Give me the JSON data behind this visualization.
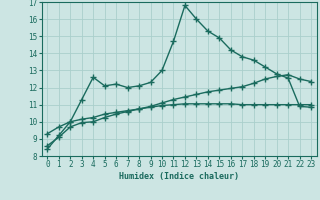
{
  "bg_color": "#cce5e3",
  "grid_color": "#aacfcc",
  "line_color": "#1a6b5e",
  "line_width": 1.0,
  "marker": "+",
  "marker_size": 4,
  "marker_ew": 1.0,
  "xlabel": "Humidex (Indice chaleur)",
  "xlim": [
    -0.5,
    23.5
  ],
  "ylim": [
    8,
    17
  ],
  "xticks": [
    0,
    1,
    2,
    3,
    4,
    5,
    6,
    7,
    8,
    9,
    10,
    11,
    12,
    13,
    14,
    15,
    16,
    17,
    18,
    19,
    20,
    21,
    22,
    23
  ],
  "yticks": [
    8,
    9,
    10,
    11,
    12,
    13,
    14,
    15,
    16,
    17
  ],
  "line1_x": [
    0,
    1,
    2,
    3,
    4,
    5,
    6,
    7,
    8,
    9,
    10,
    11,
    12,
    13,
    14,
    15,
    16,
    17,
    18,
    19,
    20,
    21,
    22,
    23
  ],
  "line1_y": [
    8.4,
    9.2,
    10.0,
    11.3,
    12.6,
    12.1,
    12.2,
    12.0,
    12.1,
    12.3,
    13.0,
    14.7,
    16.8,
    16.0,
    15.3,
    14.9,
    14.2,
    13.8,
    13.6,
    13.2,
    12.8,
    12.55,
    10.9,
    10.85
  ],
  "line2_x": [
    0,
    1,
    2,
    3,
    4,
    5,
    6,
    7,
    8,
    9,
    10,
    11,
    12,
    13,
    14,
    15,
    16,
    17,
    18,
    19,
    20,
    21,
    22,
    23
  ],
  "line2_y": [
    9.3,
    9.7,
    10.0,
    10.15,
    10.25,
    10.45,
    10.55,
    10.65,
    10.75,
    10.85,
    10.95,
    11.0,
    11.05,
    11.05,
    11.05,
    11.05,
    11.05,
    11.0,
    11.0,
    11.0,
    11.0,
    11.0,
    11.0,
    11.0
  ],
  "line3_x": [
    0,
    1,
    2,
    3,
    4,
    5,
    6,
    7,
    8,
    9,
    10,
    11,
    12,
    13,
    14,
    15,
    16,
    17,
    18,
    19,
    20,
    21,
    22,
    23
  ],
  "line3_y": [
    8.6,
    9.1,
    9.7,
    9.95,
    10.0,
    10.25,
    10.45,
    10.6,
    10.75,
    10.9,
    11.1,
    11.3,
    11.45,
    11.6,
    11.75,
    11.85,
    11.95,
    12.05,
    12.25,
    12.5,
    12.65,
    12.75,
    12.5,
    12.35
  ]
}
